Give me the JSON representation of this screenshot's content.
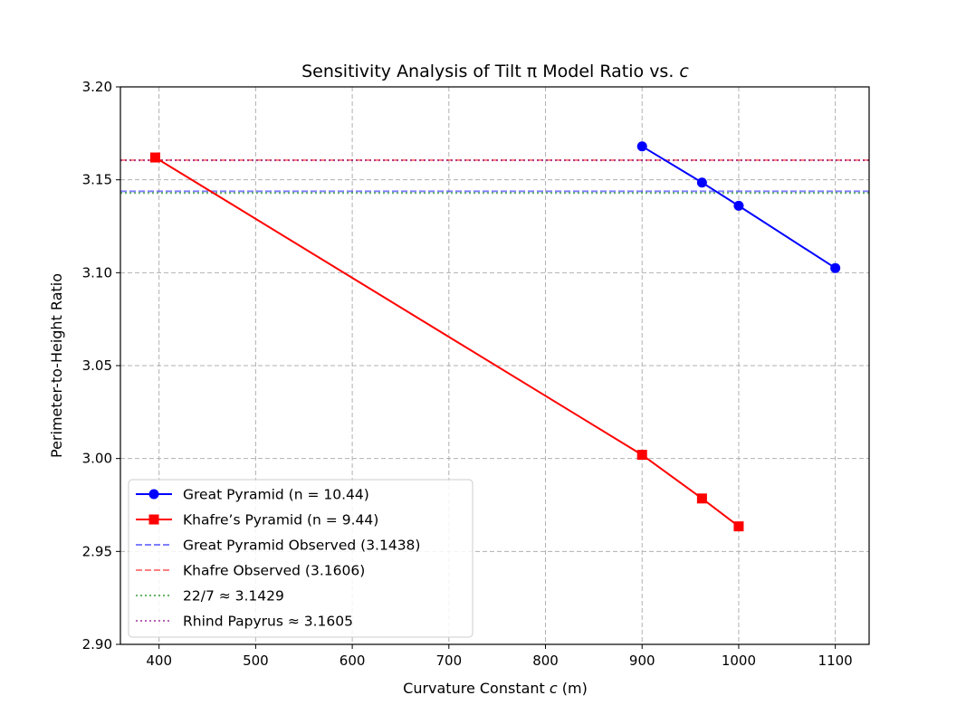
{
  "chart_data": {
    "type": "line",
    "title": "Sensitivity Analysis of Tilt π Model Ratio vs. ",
    "title_italic": "c",
    "xlabel_prefix": "Curvature Constant ",
    "xlabel_italic": "c",
    "xlabel_suffix": " (m)",
    "ylabel": "Perimeter-to-Height Ratio",
    "xlim": [
      360,
      1135
    ],
    "ylim": [
      2.9,
      3.2
    ],
    "xticks": [
      400,
      500,
      600,
      700,
      800,
      900,
      1000,
      1100
    ],
    "yticks": [
      2.9,
      2.95,
      3.0,
      3.05,
      3.1,
      3.15,
      3.2
    ],
    "ytick_labels": [
      "2.90",
      "2.95",
      "3.00",
      "3.05",
      "3.10",
      "3.15",
      "3.20"
    ],
    "grid": true,
    "legend_position": "lower-left",
    "series": [
      {
        "name": "Great Pyramid (n = 10.44)",
        "color": "#0000ff",
        "marker": "circle",
        "x": [
          900,
          962,
          1000,
          1100
        ],
        "y": [
          3.168,
          3.1485,
          3.136,
          3.1025
        ]
      },
      {
        "name": "Khafre’s Pyramid (n = 9.44)",
        "color": "#ff0000",
        "marker": "square",
        "x": [
          396,
          900,
          962,
          1000
        ],
        "y": [
          3.162,
          3.002,
          2.9785,
          2.9635
        ]
      }
    ],
    "reference_lines": [
      {
        "name": "Great Pyramid Observed (3.1438)",
        "value": 3.1438,
        "color": "#0000ff",
        "style": "dashed",
        "opacity": 0.5
      },
      {
        "name": "Khafre Observed (3.1606)",
        "value": 3.1606,
        "color": "#ff0000",
        "style": "dashed",
        "opacity": 0.5
      },
      {
        "name": "22/7 ≈ 3.1429",
        "value": 3.1429,
        "color": "#008000",
        "style": "dotted",
        "opacity": 0.6
      },
      {
        "name": "Rhind Papyrus ≈ 3.1605",
        "value": 3.1605,
        "color": "#800080",
        "style": "dotted",
        "opacity": 0.6
      }
    ]
  }
}
